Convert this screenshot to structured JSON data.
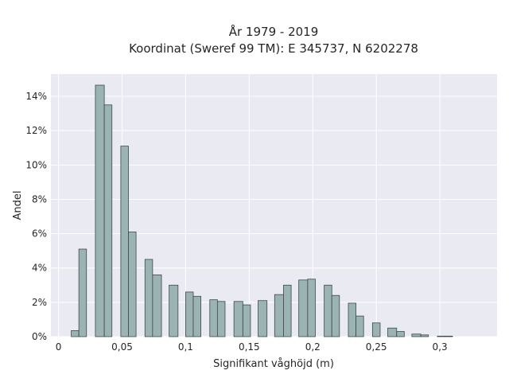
{
  "chart_data": {
    "type": "bar",
    "title_line1": "År 1979 - 2019",
    "title_line2": "Koordinat (Sweref 99 TM): E 345737, N 6202278",
    "xlabel": "Signifikant våghöjd (m)",
    "ylabel": "Andel",
    "xlim": [
      -0.006,
      0.345
    ],
    "ylim": [
      0,
      15.3
    ],
    "grid": true,
    "x_ticks": [
      {
        "value": 0,
        "label": "0"
      },
      {
        "value": 0.05,
        "label": "0,05"
      },
      {
        "value": 0.1,
        "label": "0,1"
      },
      {
        "value": 0.15,
        "label": "0,15"
      },
      {
        "value": 0.2,
        "label": "0,2"
      },
      {
        "value": 0.25,
        "label": "0,25"
      },
      {
        "value": 0.3,
        "label": "0,3"
      }
    ],
    "y_ticks": [
      {
        "value": 0,
        "label": "0%"
      },
      {
        "value": 2,
        "label": "2%"
      },
      {
        "value": 4,
        "label": "4%"
      },
      {
        "value": 6,
        "label": "6%"
      },
      {
        "value": 8,
        "label": "8%"
      },
      {
        "value": 10,
        "label": "10%"
      },
      {
        "value": 12,
        "label": "12%"
      },
      {
        "value": 14,
        "label": "14%"
      }
    ],
    "bars": [
      {
        "x": 0.01,
        "x2": 0.016,
        "value": 0.35
      },
      {
        "x": 0.016,
        "x2": 0.022,
        "value": 5.1
      },
      {
        "x": 0.029,
        "x2": 0.036,
        "value": 14.65
      },
      {
        "x": 0.036,
        "x2": 0.042,
        "value": 13.5
      },
      {
        "x": 0.049,
        "x2": 0.055,
        "value": 11.1
      },
      {
        "x": 0.055,
        "x2": 0.061,
        "value": 6.1
      },
      {
        "x": 0.068,
        "x2": 0.074,
        "value": 4.5
      },
      {
        "x": 0.074,
        "x2": 0.081,
        "value": 3.6
      },
      {
        "x": 0.087,
        "x2": 0.094,
        "value": 3.0
      },
      {
        "x": 0.1,
        "x2": 0.106,
        "value": 2.6
      },
      {
        "x": 0.106,
        "x2": 0.112,
        "value": 2.35
      },
      {
        "x": 0.119,
        "x2": 0.125,
        "value": 2.15
      },
      {
        "x": 0.125,
        "x2": 0.131,
        "value": 2.05
      },
      {
        "x": 0.138,
        "x2": 0.145,
        "value": 2.05
      },
      {
        "x": 0.145,
        "x2": 0.151,
        "value": 1.85
      },
      {
        "x": 0.157,
        "x2": 0.164,
        "value": 2.1
      },
      {
        "x": 0.17,
        "x2": 0.177,
        "value": 2.45
      },
      {
        "x": 0.177,
        "x2": 0.183,
        "value": 3.0
      },
      {
        "x": 0.189,
        "x2": 0.196,
        "value": 3.3
      },
      {
        "x": 0.196,
        "x2": 0.202,
        "value": 3.35
      },
      {
        "x": 0.209,
        "x2": 0.215,
        "value": 3.0
      },
      {
        "x": 0.215,
        "x2": 0.221,
        "value": 2.4
      },
      {
        "x": 0.228,
        "x2": 0.234,
        "value": 1.95
      },
      {
        "x": 0.234,
        "x2": 0.24,
        "value": 1.2
      },
      {
        "x": 0.247,
        "x2": 0.253,
        "value": 0.8
      },
      {
        "x": 0.259,
        "x2": 0.266,
        "value": 0.5
      },
      {
        "x": 0.266,
        "x2": 0.272,
        "value": 0.3
      },
      {
        "x": 0.278,
        "x2": 0.285,
        "value": 0.15
      },
      {
        "x": 0.285,
        "x2": 0.291,
        "value": 0.1
      },
      {
        "x": 0.298,
        "x2": 0.304,
        "value": 0.03
      },
      {
        "x": 0.304,
        "x2": 0.31,
        "value": 0.03
      }
    ],
    "colors": {
      "background": "#eaeaf2",
      "grid": "#ffffff",
      "bar_fill": "#9bb3b3",
      "bar_stroke": "#3c4a4a",
      "text": "#262626"
    }
  }
}
